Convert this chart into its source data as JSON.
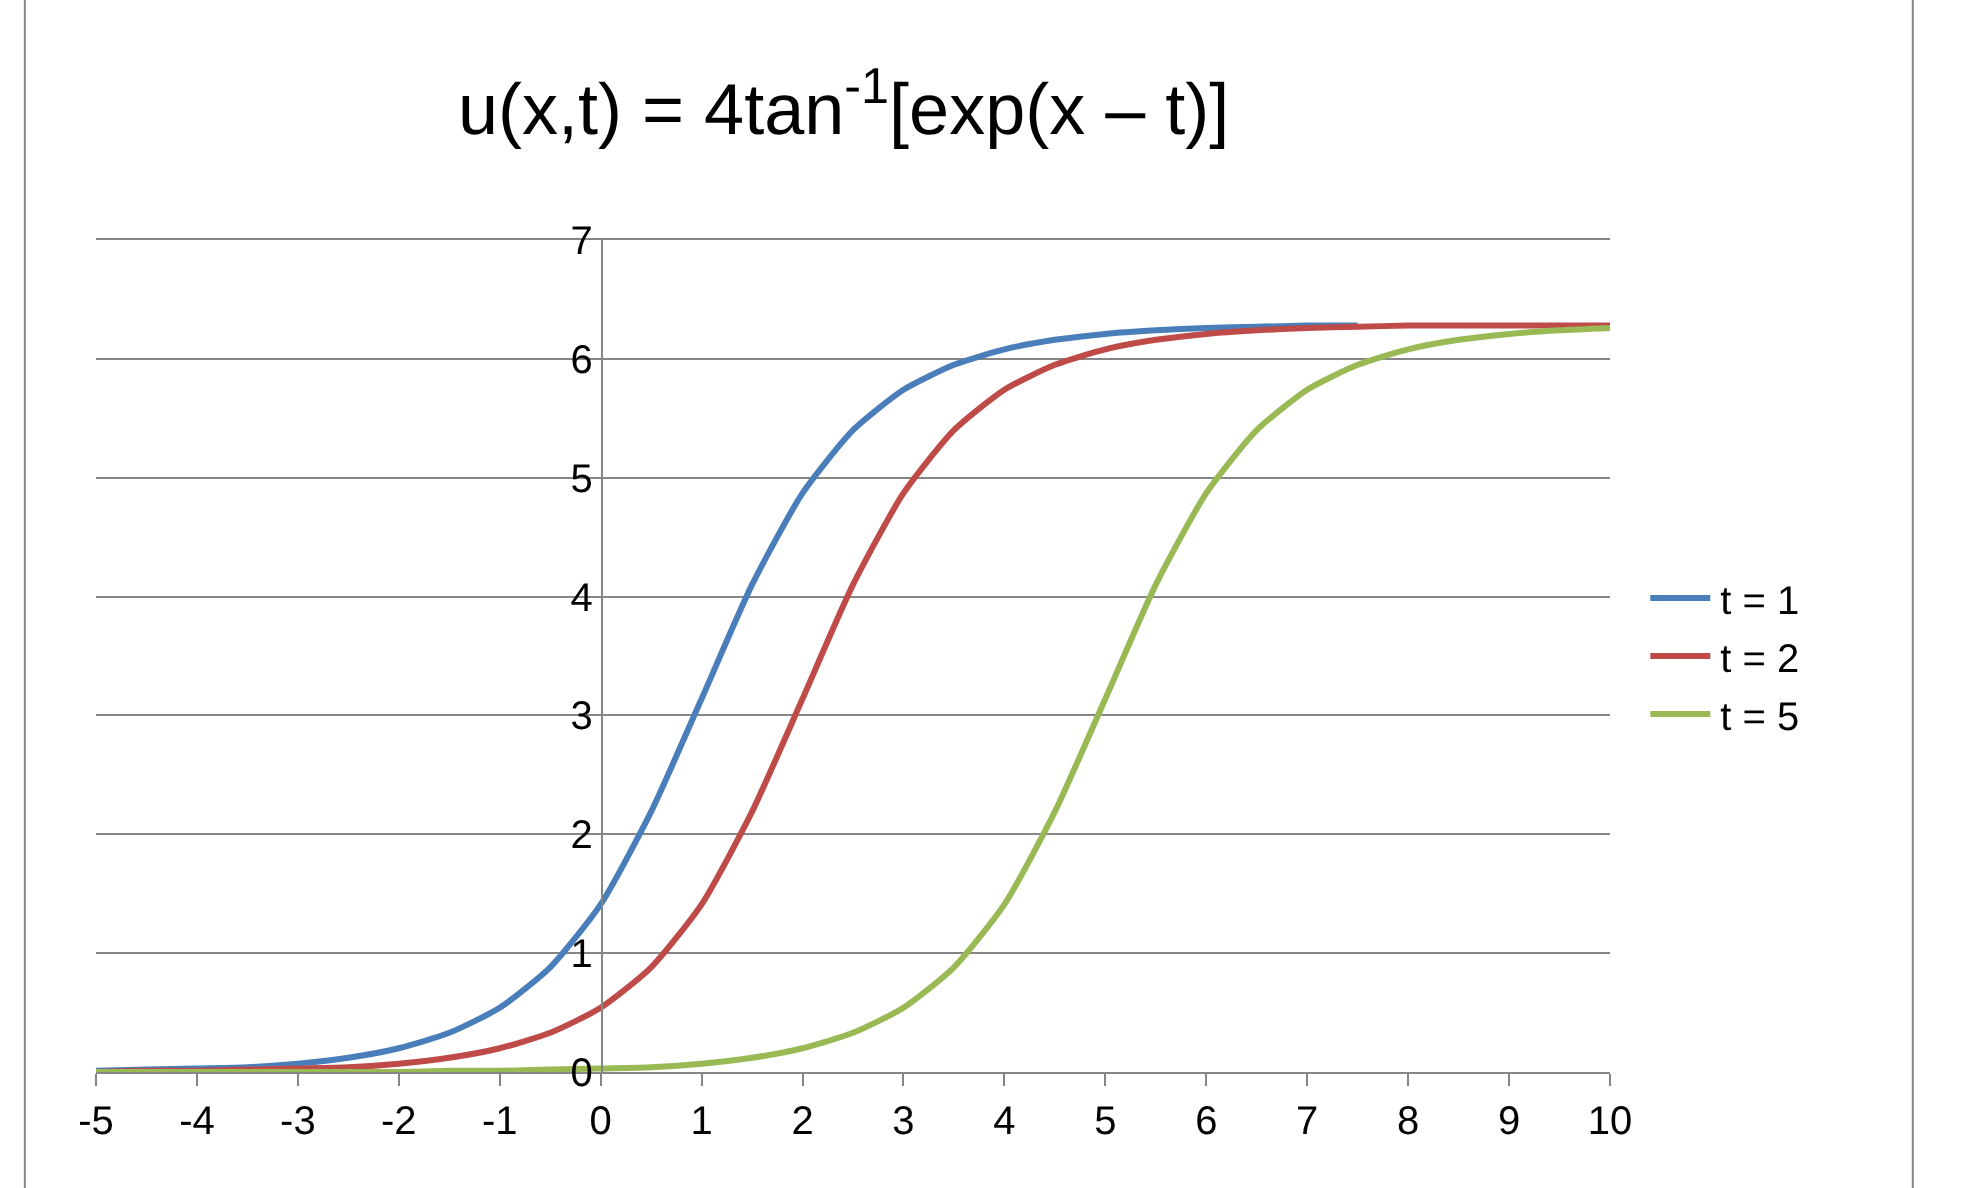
{
  "chart_data": {
    "type": "line",
    "title": "u(x,t) = 4tan$^{-1}$[exp(x – t)]",
    "x": [
      -5,
      -4.5,
      -4,
      -3.5,
      -3,
      -2.5,
      -2,
      -1.5,
      -1,
      -0.5,
      0,
      0.5,
      1,
      1.5,
      2,
      2.5,
      3,
      3.5,
      4,
      4.5,
      5,
      5.5,
      6,
      6.5,
      7,
      7.5,
      8,
      8.5,
      9,
      9.5,
      10
    ],
    "series": [
      {
        "name": "t = 1",
        "color": "#4a7ebb",
        "values": [
          0.01,
          0.02,
          0.03,
          0.04,
          0.07,
          0.12,
          0.2,
          0.33,
          0.54,
          0.88,
          1.41,
          2.19,
          3.14,
          4.1,
          4.87,
          5.4,
          5.74,
          5.95,
          6.08,
          6.16,
          6.21,
          6.24,
          6.26,
          6.27,
          6.28,
          6.28,
          null,
          null,
          null,
          null,
          null
        ]
      },
      {
        "name": "t = 2",
        "color": "#be4b48",
        "values": [
          0.0,
          0.01,
          0.01,
          0.02,
          0.03,
          0.04,
          0.07,
          0.12,
          0.2,
          0.33,
          0.54,
          0.88,
          1.41,
          2.19,
          3.14,
          4.1,
          4.87,
          5.4,
          5.74,
          5.95,
          6.08,
          6.16,
          6.21,
          6.24,
          6.26,
          6.27,
          6.28,
          6.28,
          6.28,
          6.28,
          6.28
        ]
      },
      {
        "name": "t = 5",
        "color": "#98b954",
        "values": [
          0.0,
          0.0,
          0.0,
          0.0,
          0.0,
          0.0,
          0.0,
          0.01,
          0.01,
          0.02,
          0.03,
          0.04,
          0.07,
          0.12,
          0.2,
          0.33,
          0.54,
          0.88,
          1.41,
          2.19,
          3.14,
          4.1,
          4.87,
          5.4,
          5.74,
          5.95,
          6.08,
          6.16,
          6.21,
          6.24,
          6.26
        ]
      }
    ],
    "xlim": [
      -5,
      10
    ],
    "xticks": [
      -5,
      -4,
      -3,
      -2,
      -1,
      0,
      1,
      2,
      3,
      4,
      5,
      6,
      7,
      8,
      9,
      10
    ],
    "ylim": [
      0,
      7
    ],
    "yticks": [
      0,
      1,
      2,
      3,
      4,
      5,
      6,
      7
    ],
    "grid": "y",
    "legend": "right",
    "marker": "none",
    "line_style": "solid"
  }
}
